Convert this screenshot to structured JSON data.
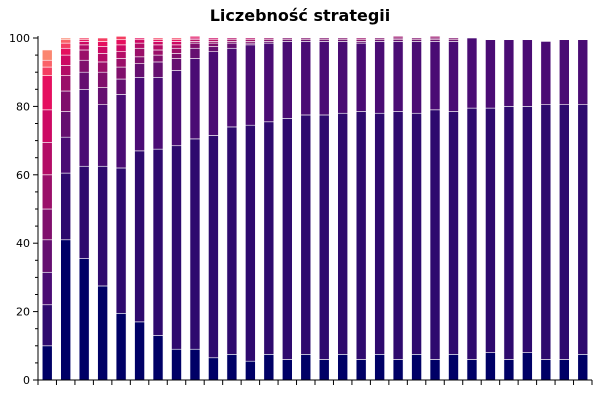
{
  "chart_data": {
    "type": "bar",
    "stacked": true,
    "title": "Liczebność strategii",
    "xlabel": "",
    "ylabel": "",
    "ylim": [
      0,
      100
    ],
    "y_ticks": [
      0,
      20,
      40,
      60,
      80,
      100
    ],
    "x_tick_labels_visible": false,
    "legend": "none",
    "grid": false,
    "categories": [
      "1",
      "2",
      "3",
      "4",
      "5",
      "6",
      "7",
      "8",
      "9",
      "10",
      "11",
      "12",
      "13",
      "14",
      "15",
      "16",
      "17",
      "18",
      "19",
      "20",
      "21",
      "22",
      "23",
      "24",
      "25",
      "26",
      "27",
      "28",
      "29",
      "30"
    ],
    "segment_colors": [
      "#000066",
      "#2e0a6e",
      "#4a0c74",
      "#650f70",
      "#800f6c",
      "#9a0f69",
      "#b30c66",
      "#cc0963",
      "#e50f5f",
      "#f43d62",
      "#fa6268",
      "#fb8670",
      "#fdae78",
      "#ffd07f"
    ],
    "series": [
      {
        "values": [
          10,
          41,
          35.5,
          27.5,
          19.5,
          17,
          13,
          9,
          9,
          6.5,
          7.5,
          5.5,
          7.5,
          6,
          7.5,
          6,
          7.5,
          6,
          7.5,
          6,
          7.5,
          6,
          7.5,
          6,
          8,
          6,
          8,
          6,
          6,
          7.5
        ]
      },
      {
        "values": [
          12,
          19.5,
          27,
          35,
          42.5,
          50,
          54.5,
          59.5,
          61.5,
          65,
          66.5,
          69,
          68,
          70.5,
          70,
          71.5,
          70.5,
          72.5,
          70.5,
          72.5,
          70.5,
          73,
          71,
          73.5,
          71.5,
          74,
          72,
          74.5,
          74.5,
          73
        ]
      },
      {
        "values": [
          9.5,
          10.5,
          22.5,
          18,
          21.5,
          21.5,
          21,
          22,
          23.5,
          24.5,
          23,
          23.5,
          23,
          22.5,
          21.5,
          21.5,
          21,
          20,
          21,
          20.5,
          21,
          20,
          20.5,
          20.5,
          20,
          19.5,
          19.5,
          18.5,
          19,
          19
        ]
      },
      {
        "values": [
          9.5,
          7.5,
          5,
          5,
          4.5,
          4,
          4.5,
          3.5,
          3,
          1.5,
          1.5,
          0.5,
          0.5,
          0.5,
          0.5,
          0.5,
          0.5,
          0.5,
          0.5,
          0.5,
          0.5,
          0.5,
          0.5,
          0,
          0,
          0,
          0,
          0,
          0,
          0
        ]
      },
      {
        "values": [
          9,
          6,
          3.5,
          4.5,
          3.5,
          2,
          2,
          1.5,
          1.5,
          1,
          0.5,
          0.5,
          0.5,
          0.5,
          0.5,
          0.5,
          0.5,
          0.5,
          0.5,
          0.5,
          0.5,
          0.5,
          0.5,
          0,
          0,
          0,
          0,
          0,
          0,
          0
        ]
      },
      {
        "values": [
          10,
          4.5,
          3,
          3,
          2.5,
          2.5,
          1.5,
          1.5,
          0.5,
          0.5,
          0.5,
          0.5,
          0.5,
          0,
          0,
          0,
          0,
          0.5,
          0,
          0.5,
          0,
          0.5,
          0,
          0,
          0,
          0,
          0,
          0,
          0,
          0
        ]
      },
      {
        "values": [
          9.5,
          3,
          1.5,
          2.5,
          2,
          1.5,
          1.5,
          1,
          0.5,
          0.5,
          0.5,
          0.5,
          0,
          0,
          0,
          0,
          0,
          0,
          0,
          0,
          0,
          0,
          0,
          0,
          0,
          0,
          0,
          0,
          0,
          0
        ]
      },
      {
        "values": [
          9.5,
          3,
          1,
          2,
          2,
          1,
          1,
          1,
          0.5,
          0.5,
          0,
          0,
          0,
          0,
          0,
          0,
          0,
          0,
          0,
          0,
          0,
          0,
          0,
          0,
          0,
          0,
          0,
          0,
          0,
          0
        ]
      },
      {
        "values": [
          10,
          2,
          0.5,
          1.5,
          1.5,
          0.5,
          0.5,
          0.5,
          0.5,
          0,
          0,
          0,
          0,
          0,
          0,
          0,
          0,
          0,
          0,
          0,
          0,
          0,
          0,
          0,
          0,
          0,
          0,
          0,
          0,
          0
        ]
      },
      {
        "values": [
          2.5,
          1.5,
          0.5,
          1,
          1,
          0,
          0.5,
          0.5,
          0,
          0,
          0,
          0,
          0,
          0,
          0,
          0,
          0,
          0,
          0,
          0,
          0,
          0,
          0,
          0,
          0,
          0,
          0,
          0,
          0,
          0
        ]
      },
      {
        "values": [
          2,
          1,
          0,
          0,
          0,
          0,
          0,
          0,
          0,
          0,
          0,
          0,
          0,
          0,
          0,
          0,
          0,
          0,
          0,
          0,
          0,
          0,
          0,
          0,
          0,
          0,
          0,
          0,
          0,
          0
        ]
      },
      {
        "values": [
          3,
          0.5,
          0,
          0,
          0,
          0,
          0,
          0,
          0,
          0,
          0,
          0,
          0,
          0,
          0,
          0,
          0,
          0,
          0,
          0,
          0,
          0,
          0,
          0,
          0,
          0,
          0,
          0,
          0,
          0
        ]
      },
      {
        "values": [
          0,
          0,
          0,
          0,
          0,
          0,
          0,
          0,
          0,
          0,
          0,
          0,
          0,
          0,
          0,
          0,
          0,
          0,
          0,
          0,
          0,
          0,
          0,
          0,
          0,
          0,
          0,
          0,
          0,
          0
        ]
      },
      {
        "values": [
          0,
          0,
          0,
          0,
          0,
          0,
          0,
          0,
          0,
          0,
          0,
          0,
          0,
          0,
          0,
          0,
          0,
          0,
          0,
          0,
          0,
          0,
          0,
          0,
          0,
          0,
          0,
          0,
          0,
          0
        ]
      }
    ]
  }
}
